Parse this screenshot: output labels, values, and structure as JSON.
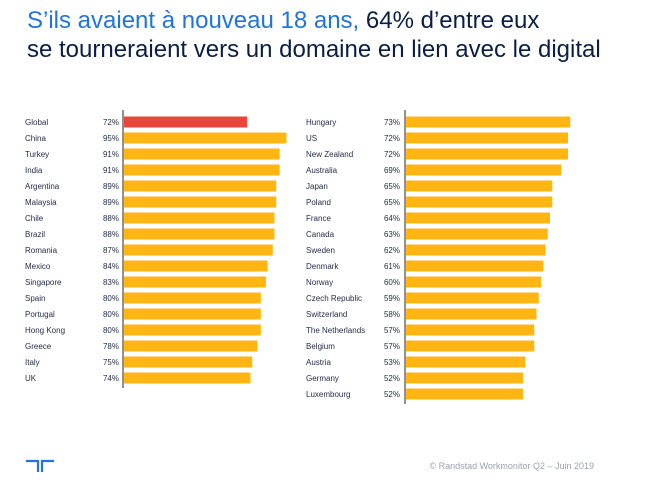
{
  "header": {
    "title_highlight": "S’ils avaient à nouveau 18 ans,",
    "title_rest": " 64% d’entre eux",
    "title_line2": "se tourneraient vers un domaine en lien avec le digital"
  },
  "footer": {
    "copyright": "© Randstad Workmonitor Q2 – Juin 2019"
  },
  "colors": {
    "highlight": "#e8463b",
    "bar": "#ffb610",
    "title_accent": "#2175d9",
    "title": "#0a1e46"
  },
  "chart_data": [
    {
      "type": "bar",
      "orientation": "horizontal",
      "categories": [
        "Global",
        "China",
        "Turkey",
        "India",
        "Argentina",
        "Malaysia",
        "Chile",
        "Brazil",
        "Romania",
        "Mexico",
        "Singapore",
        "Spain",
        "Portugal",
        "Hong Kong",
        "Greece",
        "Italy",
        "UK"
      ],
      "values": [
        72,
        95,
        91,
        91,
        89,
        89,
        88,
        88,
        87,
        84,
        83,
        80,
        80,
        80,
        78,
        75,
        74
      ],
      "value_labels": [
        "72%",
        "95%",
        "91%",
        "91%",
        "89%",
        "89%",
        "88%",
        "88%",
        "87%",
        "84%",
        "83%",
        "80%",
        "80%",
        "80%",
        "78%",
        "75%",
        "74%"
      ],
      "highlight_index": 0
    },
    {
      "type": "bar",
      "orientation": "horizontal",
      "categories": [
        "Hungary",
        "US",
        "New Zealand",
        "Australia",
        "Japan",
        "Poland",
        "France",
        "Canada",
        "Sweden",
        "Denmark",
        "Norway",
        "Czech Republic",
        "Switzerland",
        "The Netherlands",
        "Belgium",
        "Austria",
        "Germany",
        "Luxembourg"
      ],
      "values": [
        73,
        72,
        72,
        69,
        65,
        65,
        64,
        63,
        62,
        61,
        60,
        59,
        58,
        57,
        57,
        53,
        52,
        52
      ],
      "value_labels": [
        "73%",
        "72%",
        "72%",
        "69%",
        "65%",
        "65%",
        "64%",
        "63%",
        "62%",
        "61%",
        "60%",
        "59%",
        "58%",
        "57%",
        "57%",
        "53%",
        "52%",
        "52%"
      ]
    }
  ]
}
